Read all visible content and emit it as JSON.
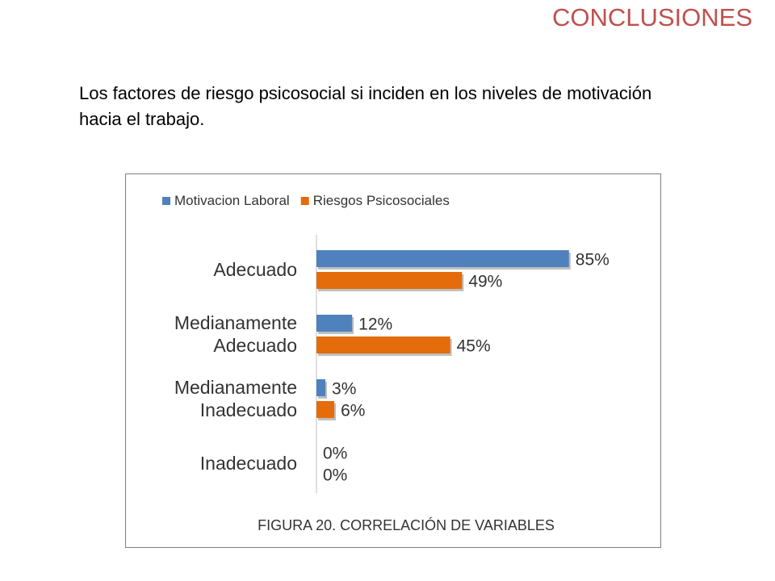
{
  "slide": {
    "title": "CONCLUSIONES",
    "body": "Los factores de riesgo psicosocial si inciden en los niveles de motivación hacia el trabajo."
  },
  "colors": {
    "title": "#c0504d",
    "series_1": "#4f81bd",
    "series_2": "#e46c0a"
  },
  "chart_data": {
    "type": "bar",
    "orientation": "horizontal",
    "categories": [
      [
        "Adecuado"
      ],
      [
        "Medianamente",
        "Adecuado"
      ],
      [
        "Medianamente",
        "Inadecuado"
      ],
      [
        "Inadecuado"
      ]
    ],
    "series": [
      {
        "name": "Motivacion Laboral",
        "values": [
          85,
          12,
          3,
          0
        ],
        "labels": [
          "85%",
          "12%",
          "3%",
          "0%"
        ]
      },
      {
        "name": "Riesgos Psicosociales",
        "values": [
          49,
          45,
          6,
          0
        ],
        "labels": [
          "49%",
          "45%",
          "6%",
          "0%"
        ]
      }
    ],
    "xlim": [
      0,
      100
    ],
    "unit": "%",
    "grid": false,
    "legend": "top",
    "caption": "FIGURA 20. CORRELACIÓN DE VARIABLES"
  }
}
